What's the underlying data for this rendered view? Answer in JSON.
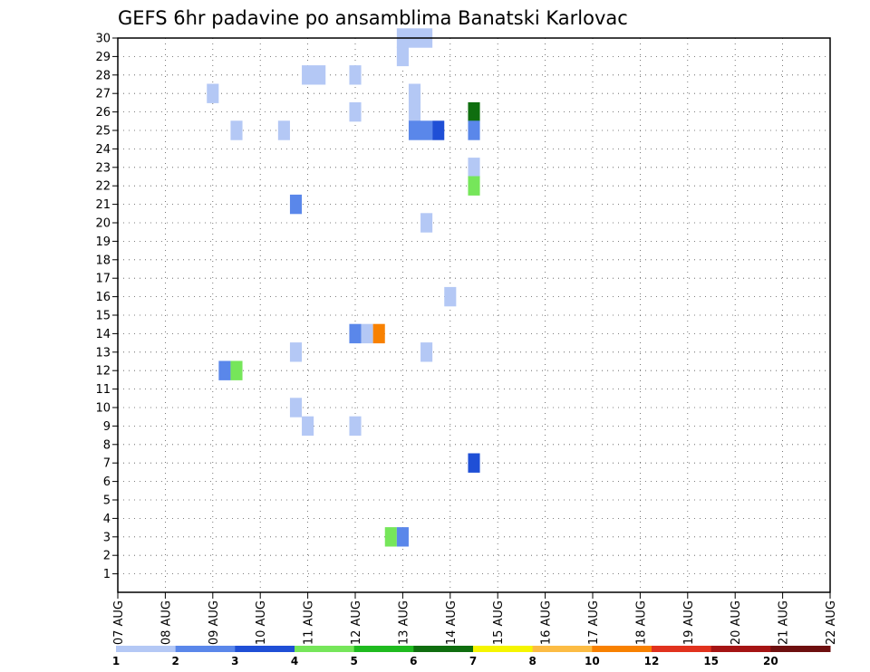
{
  "chart_data": {
    "type": "heatmap",
    "title": "GEFS 6hr padavine po ansamblima Banatski Karlovac",
    "x_labels": [
      "07 AUG",
      "08 AUG",
      "09 AUG",
      "10 AUG",
      "11 AUG",
      "12 AUG",
      "13 AUG",
      "14 AUG",
      "15 AUG",
      "16 AUG",
      "17 AUG",
      "18 AUG",
      "19 AUG",
      "20 AUG",
      "21 AUG",
      "22 AUG"
    ],
    "y_labels": [
      "1",
      "2",
      "3",
      "4",
      "5",
      "6",
      "7",
      "8",
      "9",
      "10",
      "11",
      "12",
      "13",
      "14",
      "15",
      "16",
      "17",
      "18",
      "19",
      "20",
      "21",
      "22",
      "23",
      "24",
      "25",
      "26",
      "27",
      "28",
      "29",
      "30"
    ],
    "ylim": [
      0,
      30
    ],
    "steps_per_day": 4,
    "grid": true,
    "legend": {
      "placement": "bottom",
      "labels": [
        "1",
        "2",
        "3",
        "4",
        "5",
        "6",
        "7",
        "8",
        "10",
        "12",
        "15",
        "20"
      ],
      "colors": [
        "#b4c8f5",
        "#5a87ea",
        "#1f4fd6",
        "#76e65a",
        "#1fbb1f",
        "#0f6e0f",
        "#f5f500",
        "#fcbc44",
        "#f88100",
        "#e1321e",
        "#a51414",
        "#6e0f0f"
      ]
    },
    "cells": [
      {
        "member": 30,
        "step": [
          24,
          26
        ],
        "class": 1
      },
      {
        "member": 29,
        "step": [
          24,
          24
        ],
        "class": 1
      },
      {
        "member": 28,
        "step": [
          16,
          17
        ],
        "class": 1
      },
      {
        "member": 28,
        "step": [
          20,
          20
        ],
        "class": 1
      },
      {
        "member": 27,
        "step": [
          8,
          8
        ],
        "class": 1
      },
      {
        "member": 27,
        "step": [
          25,
          25
        ],
        "class": 1
      },
      {
        "member": 26,
        "step": [
          20,
          20
        ],
        "class": 1
      },
      {
        "member": 26,
        "step": [
          25,
          25
        ],
        "class": 1
      },
      {
        "member": 26,
        "step": [
          30,
          30
        ],
        "class": 6
      },
      {
        "member": 25,
        "step": [
          10,
          10
        ],
        "class": 1
      },
      {
        "member": 25,
        "step": [
          14,
          14
        ],
        "class": 1
      },
      {
        "member": 25,
        "step": [
          25,
          26
        ],
        "class": 2
      },
      {
        "member": 25,
        "step": [
          27,
          27
        ],
        "class": 3
      },
      {
        "member": 25,
        "step": [
          30,
          30
        ],
        "class": 2
      },
      {
        "member": 23,
        "step": [
          30,
          30
        ],
        "class": 1
      },
      {
        "member": 22,
        "step": [
          30,
          30
        ],
        "class": 4
      },
      {
        "member": 21,
        "step": [
          15,
          15
        ],
        "class": 2
      },
      {
        "member": 20,
        "step": [
          26,
          26
        ],
        "class": 1
      },
      {
        "member": 16,
        "step": [
          28,
          28
        ],
        "class": 1
      },
      {
        "member": 14,
        "step": [
          20,
          20
        ],
        "class": 2
      },
      {
        "member": 14,
        "step": [
          21,
          21
        ],
        "class": 1
      },
      {
        "member": 14,
        "step": [
          22,
          22
        ],
        "class": 9
      },
      {
        "member": 13,
        "step": [
          15,
          15
        ],
        "class": 1
      },
      {
        "member": 13,
        "step": [
          26,
          26
        ],
        "class": 1
      },
      {
        "member": 12,
        "step": [
          9,
          9
        ],
        "class": 2
      },
      {
        "member": 12,
        "step": [
          10,
          10
        ],
        "class": 4
      },
      {
        "member": 10,
        "step": [
          15,
          15
        ],
        "class": 1
      },
      {
        "member": 9,
        "step": [
          16,
          16
        ],
        "class": 1
      },
      {
        "member": 9,
        "step": [
          20,
          20
        ],
        "class": 1
      },
      {
        "member": 7,
        "step": [
          30,
          30
        ],
        "class": 3
      },
      {
        "member": 3,
        "step": [
          23,
          23
        ],
        "class": 4
      },
      {
        "member": 3,
        "step": [
          24,
          24
        ],
        "class": 2
      }
    ]
  }
}
